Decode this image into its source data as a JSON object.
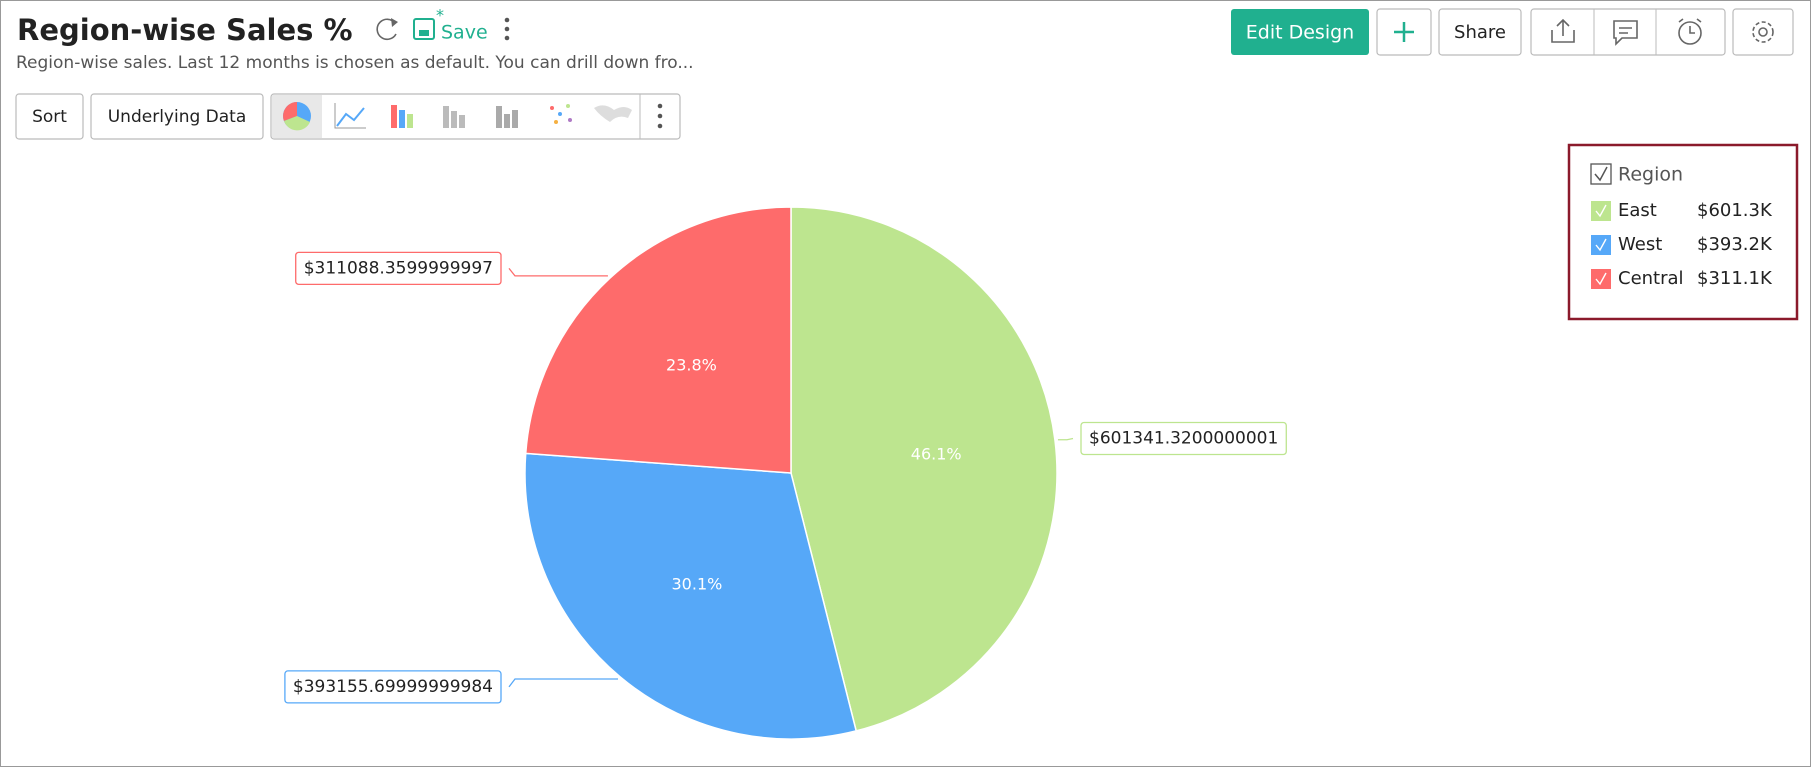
{
  "header": {
    "title": "Region-wise Sales %",
    "subtitle": "Region-wise sales. Last 12 months is chosen as default. You can drill down fro...",
    "save": "Save"
  },
  "toolbar": {
    "edit_design": "Edit Design",
    "share": "Share",
    "sort": "Sort",
    "underlying_data": "Underlying Data"
  },
  "chart_data": {
    "type": "pie",
    "categories": [
      "East",
      "West",
      "Central"
    ],
    "values": [
      601341.3200000001,
      393155.69999999984,
      311088.3599999997
    ],
    "value_labels": [
      "$601341.3200000001",
      "$393155.69999999984",
      "$311088.3599999997"
    ],
    "percent_labels": [
      "46.1%",
      "30.1%",
      "23.8%"
    ],
    "colors": [
      "#bde58f",
      "#56a8f8",
      "#fe6b6b"
    ],
    "legend": {
      "title": "Region",
      "position": "top-right",
      "value_labels": [
        "$601.3K",
        "$393.2K",
        "$311.1K"
      ]
    }
  }
}
